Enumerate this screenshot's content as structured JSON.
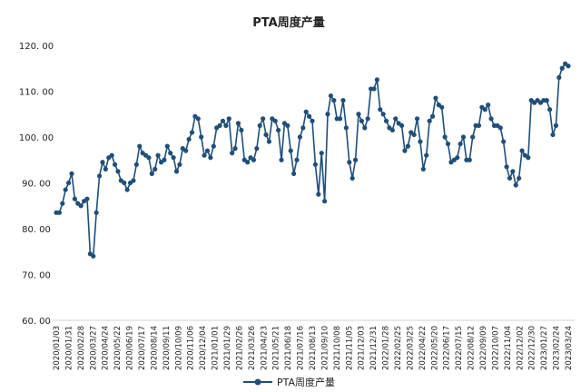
{
  "chart_data": {
    "type": "line",
    "title": "PTA周度产量",
    "xlabel": "",
    "ylabel": "",
    "ylim": [
      60,
      120
    ],
    "yticks": [
      60,
      70,
      80,
      90,
      100,
      110,
      120
    ],
    "ytick_labels": [
      "60. 00",
      "70. 00",
      "80. 00",
      "90. 00",
      "100. 00",
      "110. 00",
      "120. 00"
    ],
    "grid": false,
    "legend_position": "bottom",
    "x_tick_labels": [
      "2020/01/03",
      "2020/01/31",
      "2020/02/28",
      "2020/03/27",
      "2020/04/24",
      "2020/05/22",
      "2020/06/19",
      "2020/07/17",
      "2020/08/14",
      "2020/09/11",
      "2020/10/09",
      "2020/11/06",
      "2020/12/04",
      "2021/01/01",
      "2021/01/29",
      "2021/02/26",
      "2021/03/26",
      "2021/04/23",
      "2021/05/21",
      "2021/06/18",
      "2021/07/16",
      "2021/08/13",
      "2021/09/10",
      "2021/10/08",
      "2021/11/05",
      "2021/12/03",
      "2021/12/31",
      "2022/01/28",
      "2022/02/25",
      "2022/03/25",
      "2022/04/22",
      "2022/05/20",
      "2022/06/17",
      "2022/07/15",
      "2022/08/12",
      "2022/09/09",
      "2022/10/07",
      "2022/11/04",
      "2022/12/02",
      "2022/12/30",
      "2023/01/27",
      "2023/02/24",
      "2023/03/24"
    ],
    "series": [
      {
        "name": "PTA周度产量",
        "color": "#1f4e79",
        "values": [
          83.5,
          83.5,
          85.5,
          88.5,
          90,
          92,
          86.5,
          85.5,
          85,
          86,
          86.5,
          74.5,
          74,
          83.5,
          91.5,
          94.5,
          93,
          95.5,
          96,
          94,
          92.5,
          90.5,
          90,
          88.5,
          90,
          90.5,
          94,
          98,
          96.5,
          96,
          95.5,
          92,
          93,
          96,
          94.5,
          95,
          98,
          96.5,
          95.5,
          92.5,
          94,
          97.5,
          97,
          99.5,
          101,
          104.5,
          104,
          100,
          96,
          97,
          95.5,
          98,
          102,
          102.5,
          103.5,
          102.5,
          104,
          96.5,
          97.5,
          103,
          101.5,
          95,
          94.5,
          95.5,
          95,
          97.5,
          102.5,
          104,
          100.5,
          99,
          104,
          103.5,
          101.5,
          95,
          103,
          102.5,
          97,
          92,
          95,
          100,
          102,
          105.5,
          104.5,
          103.5,
          94,
          87.5,
          96.5,
          86,
          105,
          109,
          108,
          104,
          104,
          108,
          102,
          94.5,
          91,
          95,
          105,
          103.5,
          102,
          104,
          110.5,
          110.5,
          112.5,
          106,
          105,
          103.5,
          102,
          101.5,
          104,
          103,
          102.5,
          97,
          98,
          101,
          100.5,
          104,
          99,
          93,
          96,
          103.5,
          104.5,
          108.5,
          107,
          106.5,
          100,
          98.5,
          94.5,
          95,
          95.5,
          98.5,
          100,
          95,
          95,
          100,
          102.5,
          102.5,
          106.5,
          106,
          107,
          104,
          102.5,
          102.5,
          102,
          99,
          93.5,
          91,
          92.5,
          89.5,
          91,
          97,
          96,
          95.5,
          108,
          107.5,
          108,
          107.5,
          108,
          108,
          106,
          100.5,
          102.5,
          113,
          115,
          116,
          115.5
        ]
      }
    ]
  }
}
